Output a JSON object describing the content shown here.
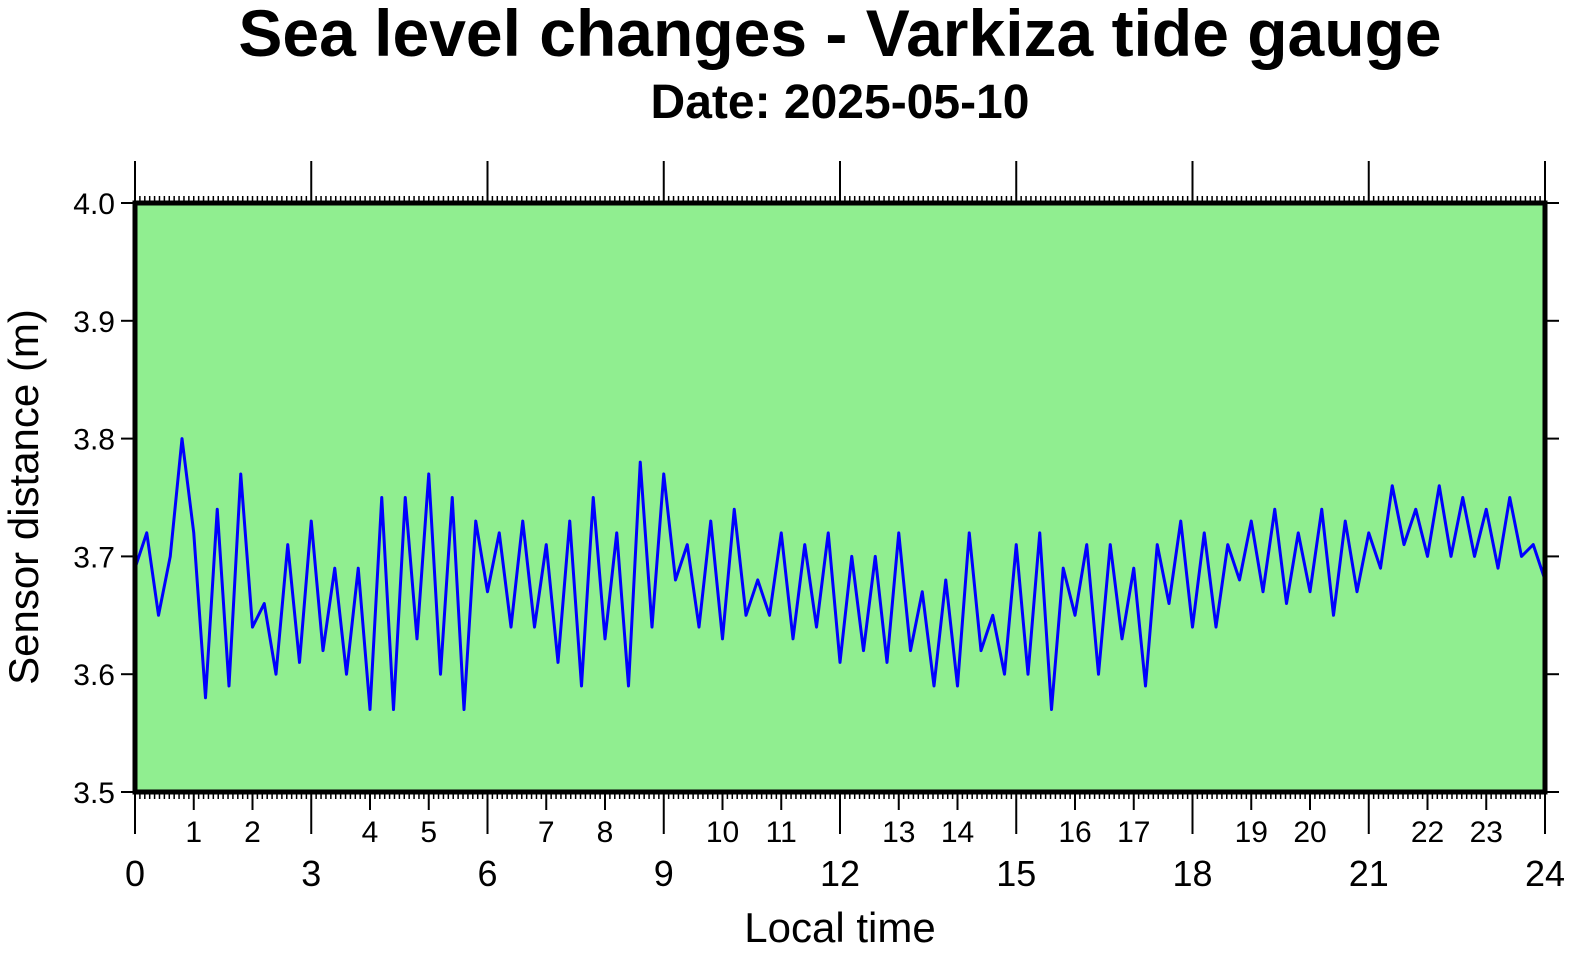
{
  "chart_data": {
    "type": "line",
    "title": "Sea level changes - Varkiza tide gauge",
    "subtitle": "Date: 2025-05-10",
    "x_label": "Local time",
    "y_label": "Sensor distance (m)",
    "background": "#90ee90",
    "xlim": [
      0,
      24
    ],
    "xticks": [
      0,
      3,
      6,
      9,
      12,
      15,
      18,
      21,
      24
    ],
    "xticks_minor": [
      1,
      2,
      4,
      5,
      7,
      8,
      10,
      11,
      13,
      14,
      16,
      17,
      19,
      20,
      22,
      23
    ],
    "ylim": [
      3.5,
      4.0
    ],
    "yticks": [
      3.5,
      3.6,
      3.7,
      3.8,
      3.9,
      {
        "value": 4.0,
        "label": "4.0"
      }
    ],
    "x": [
      0,
      0.2,
      0.4,
      0.6,
      0.8,
      1,
      1.2,
      1.4,
      1.6,
      1.8,
      2,
      2.2,
      2.4,
      2.6,
      2.8,
      3,
      3.2,
      3.4,
      3.6,
      3.8,
      4,
      4.2,
      4.4,
      4.6,
      4.8,
      5,
      5.2,
      5.4,
      5.6,
      5.8,
      6,
      6.2,
      6.4,
      6.6,
      6.8,
      7,
      7.2,
      7.4,
      7.6,
      7.8,
      8,
      8.2,
      8.4,
      8.6,
      8.8,
      9,
      9.2,
      9.4,
      9.6,
      9.8,
      10,
      10.2,
      10.4,
      10.6,
      10.8,
      11,
      11.2,
      11.4,
      11.6,
      11.8,
      12,
      12.2,
      12.4,
      12.6,
      12.8,
      13,
      13.2,
      13.4,
      13.6,
      13.8,
      14,
      14.2,
      14.4,
      14.6,
      14.8,
      15,
      15.2,
      15.4,
      15.6,
      15.8,
      16,
      16.2,
      16.4,
      16.6,
      16.8,
      17,
      17.2,
      17.4,
      17.6,
      17.8,
      18,
      18.2,
      18.4,
      18.6,
      18.8,
      19,
      19.2,
      19.4,
      19.6,
      19.8,
      20,
      20.2,
      20.4,
      20.6,
      20.8,
      21,
      21.2,
      21.4,
      21.6,
      21.8,
      22,
      22.2,
      22.4,
      22.6,
      22.8,
      23,
      23.2,
      23.4,
      23.6,
      23.8,
      24
    ],
    "series": [
      {
        "name": "Sea level",
        "color": "#0000ff",
        "values": [
          3.69,
          3.72,
          3.65,
          3.7,
          3.8,
          3.72,
          3.58,
          3.74,
          3.59,
          3.77,
          3.64,
          3.66,
          3.6,
          3.71,
          3.61,
          3.73,
          3.62,
          3.69,
          3.6,
          3.69,
          3.57,
          3.75,
          3.57,
          3.75,
          3.63,
          3.77,
          3.6,
          3.75,
          3.57,
          3.73,
          3.67,
          3.72,
          3.64,
          3.73,
          3.64,
          3.71,
          3.61,
          3.73,
          3.59,
          3.75,
          3.63,
          3.72,
          3.59,
          3.78,
          3.64,
          3.77,
          3.68,
          3.71,
          3.64,
          3.73,
          3.63,
          3.74,
          3.65,
          3.68,
          3.65,
          3.72,
          3.63,
          3.71,
          3.64,
          3.72,
          3.61,
          3.7,
          3.62,
          3.7,
          3.61,
          3.72,
          3.62,
          3.67,
          3.59,
          3.68,
          3.59,
          3.72,
          3.62,
          3.65,
          3.6,
          3.71,
          3.6,
          3.72,
          3.57,
          3.69,
          3.65,
          3.71,
          3.6,
          3.71,
          3.63,
          3.69,
          3.59,
          3.71,
          3.66,
          3.73,
          3.64,
          3.72,
          3.64,
          3.71,
          3.68,
          3.73,
          3.67,
          3.74,
          3.66,
          3.72,
          3.67,
          3.74,
          3.65,
          3.73,
          3.67,
          3.72,
          3.69,
          3.76,
          3.71,
          3.74,
          3.7,
          3.76,
          3.7,
          3.75,
          3.7,
          3.74,
          3.69,
          3.75,
          3.7,
          3.71,
          3.68
        ]
      }
    ]
  }
}
